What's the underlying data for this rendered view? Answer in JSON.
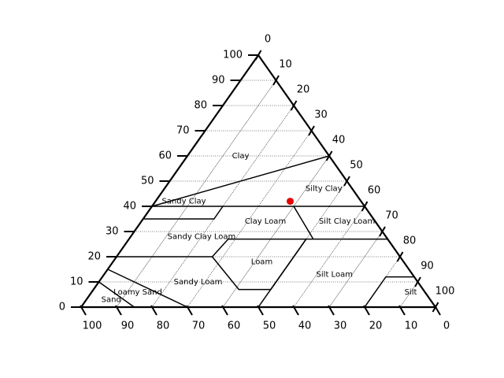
{
  "chart_data": {
    "type": "ternary",
    "title": "",
    "axes": {
      "clay": {
        "label": "",
        "range": [
          0,
          100
        ],
        "ticks": [
          "0",
          "10",
          "20",
          "30",
          "40",
          "50",
          "60",
          "70",
          "80",
          "90",
          "100"
        ]
      },
      "silt": {
        "label": "",
        "range": [
          0,
          100
        ],
        "ticks": [
          "0",
          "10",
          "20",
          "30",
          "40",
          "50",
          "60",
          "70",
          "80",
          "90",
          "100"
        ]
      },
      "sand": {
        "label": "",
        "range": [
          0,
          100
        ],
        "ticks": [
          "0",
          "10",
          "20",
          "30",
          "40",
          "50",
          "60",
          "70",
          "80",
          "90",
          "100"
        ]
      }
    },
    "grid": true,
    "regions": [
      {
        "name": "Clay",
        "label_point": {
          "clay": 60,
          "silt": 15
        }
      },
      {
        "name": "Silty Clay",
        "label_point": {
          "clay": 47,
          "silt": 45
        }
      },
      {
        "name": "Sandy Clay",
        "label_point": {
          "clay": 42,
          "silt": 8
        }
      },
      {
        "name": "Clay Loam",
        "label_point": {
          "clay": 34,
          "silt": 35
        }
      },
      {
        "name": "Silt Clay Loam",
        "label_point": {
          "clay": 34,
          "silt": 58
        }
      },
      {
        "name": "Sandy Clay Loam",
        "label_point": {
          "clay": 28,
          "silt": 20
        }
      },
      {
        "name": "Loam",
        "label_point": {
          "clay": 18,
          "silt": 42
        }
      },
      {
        "name": "Silt Loam",
        "label_point": {
          "clay": 13,
          "silt": 65
        }
      },
      {
        "name": "Sandy Loam",
        "label_point": {
          "clay": 10,
          "silt": 28
        }
      },
      {
        "name": "Loamy Sand",
        "label_point": {
          "clay": 6,
          "silt": 13
        }
      },
      {
        "name": "Sand",
        "label_point": {
          "clay": 3,
          "silt": 7
        }
      },
      {
        "name": "Silt",
        "label_point": {
          "clay": 6,
          "silt": 90
        }
      }
    ],
    "boundaries": [
      [
        {
          "clay": 40,
          "silt": 0
        },
        {
          "clay": 60,
          "silt": 40
        }
      ],
      [
        {
          "clay": 40,
          "silt": 0
        },
        {
          "clay": 35,
          "silt": 0
        },
        {
          "clay": 35,
          "silt": 20
        },
        {
          "clay": 40,
          "silt": 20
        }
      ],
      [
        {
          "clay": 40,
          "silt": 0
        },
        {
          "clay": 40,
          "silt": 60
        }
      ],
      [
        {
          "clay": 40,
          "silt": 40
        },
        {
          "clay": 27,
          "silt": 52
        }
      ],
      [
        {
          "clay": 27,
          "silt": 52
        },
        {
          "clay": 27,
          "silt": 73
        }
      ],
      [
        {
          "clay": 20,
          "silt": 0
        },
        {
          "clay": 20,
          "silt": 27
        },
        {
          "clay": 27,
          "silt": 28
        },
        {
          "clay": 27,
          "silt": 52
        }
      ],
      [
        {
          "clay": 20,
          "silt": 27
        },
        {
          "clay": 7,
          "silt": 41
        },
        {
          "clay": 7,
          "silt": 50
        },
        {
          "clay": 27,
          "silt": 50
        }
      ],
      [
        {
          "clay": 0,
          "silt": 50
        },
        {
          "clay": 27,
          "silt": 50
        }
      ],
      [
        {
          "clay": 0,
          "silt": 80
        },
        {
          "clay": 12,
          "silt": 80
        },
        {
          "clay": 12,
          "silt": 88
        }
      ],
      [
        {
          "clay": 15,
          "silt": 0
        },
        {
          "clay": 0,
          "silt": 30
        }
      ],
      [
        {
          "clay": 10,
          "silt": 0
        },
        {
          "clay": 0,
          "silt": 15
        }
      ]
    ],
    "points": [
      {
        "clay": 42,
        "silt": 38,
        "sand": 20,
        "color": "#e60000"
      }
    ],
    "colors": {
      "outline": "#000000",
      "grid": "#000000",
      "point": "#e60000"
    }
  }
}
